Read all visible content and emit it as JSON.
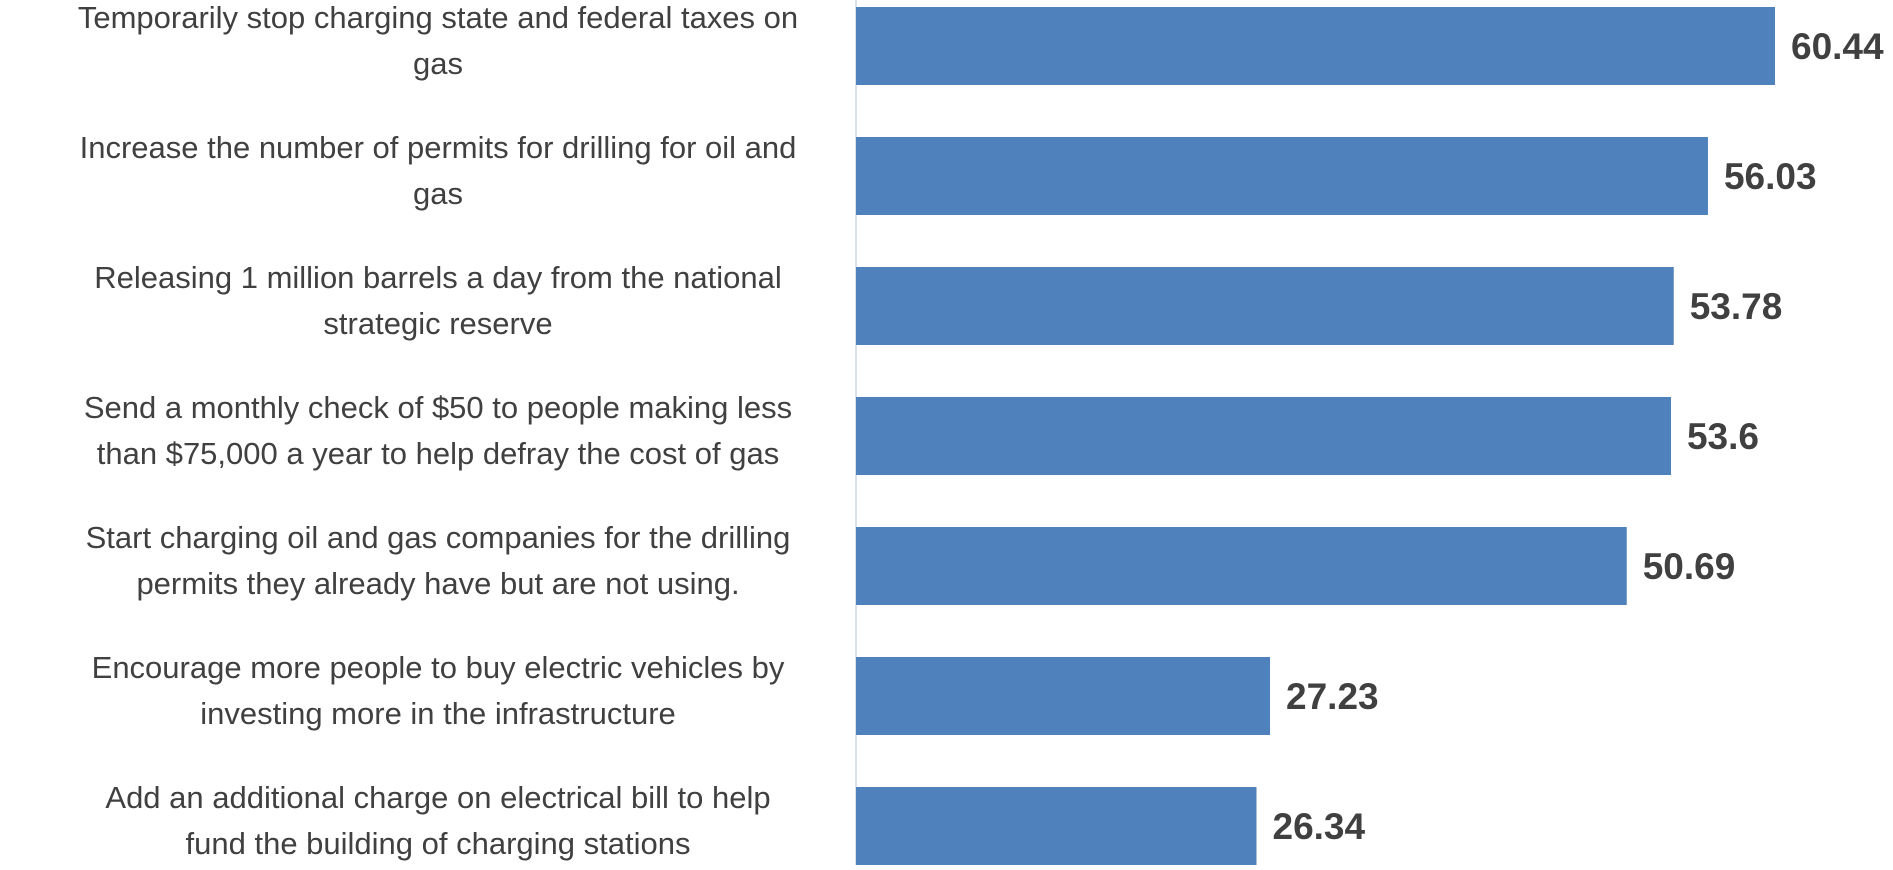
{
  "chart_data": {
    "type": "bar",
    "orientation": "horizontal",
    "title": "",
    "xlabel": "",
    "ylabel": "",
    "categories": [
      "Temporarily stop charging state and federal taxes on gas",
      "Increase the number of permits for drilling for oil and gas",
      "Releasing 1 million barrels a day from the national strategic reserve",
      "Send a monthly check of $50 to people making less than $75,000 a year to help defray the cost of gas",
      "Start charging oil and gas companies for the drilling permits they already have but are not using.",
      "Encourage more people to buy electric vehicles by investing more in the infrastructure",
      "Add an additional charge on electrical bill to help fund the building of charging stations"
    ],
    "category_lines": [
      [
        "Temporarily stop charging state and federal taxes on",
        "gas"
      ],
      [
        "Increase the number of permits for drilling for oil and",
        "gas"
      ],
      [
        "Releasing 1 million barrels a day from the national",
        "strategic reserve"
      ],
      [
        "Send a monthly check of $50 to people making less",
        "than $75,000 a year to help defray the cost of gas"
      ],
      [
        "Start charging oil and gas companies for the drilling",
        "permits they already have but are not using."
      ],
      [
        "Encourage more people to buy electric vehicles by",
        "investing more in the infrastructure"
      ],
      [
        "Add an additional charge on electrical bill to help",
        "fund the building of charging stations"
      ]
    ],
    "values": [
      60.44,
      56.03,
      53.78,
      53.6,
      50.69,
      27.23,
      26.34
    ],
    "data_labels": [
      "60.44",
      "56.03",
      "53.78",
      "53.6",
      "50.69",
      "27.23",
      "26.34"
    ],
    "xlim": [
      0,
      60.44
    ],
    "grid": false,
    "legend": "none",
    "colors": {
      "bar": "#4f81bd",
      "label_text": "#404040",
      "value_text": "#404040",
      "axis_line": "#d9e2ec"
    }
  }
}
